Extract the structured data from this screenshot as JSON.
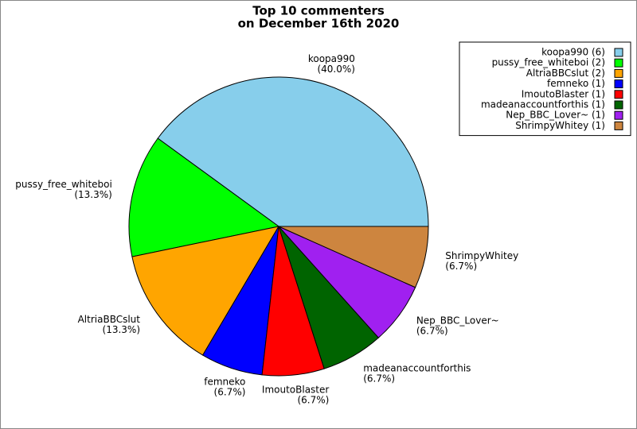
{
  "chart_data": {
    "type": "pie",
    "title": [
      "Top 10 commenters",
      "on December 16th 2020"
    ],
    "categories": [
      "koopa990",
      "pussy_free_whiteboi",
      "AltriaBBCslut",
      "femneko",
      "ImoutoBlaster",
      "madeanaccountforthis",
      "Nep_BBC_Lover~",
      "ShrimpyWhitey"
    ],
    "values": [
      40.0,
      13.3,
      13.3,
      6.7,
      6.7,
      6.7,
      6.7,
      6.7
    ],
    "value_labels": [
      "(40.0%)",
      "(13.3%)",
      "(13.3%)",
      "(6.7%)",
      "(6.7%)",
      "(6.7%)",
      "(6.7%)",
      "(6.7%)"
    ],
    "colors": [
      "#87ceeb",
      "#00ff00",
      "#ffa500",
      "#0000ff",
      "#ff0000",
      "#006400",
      "#a020f0",
      "#cd853f"
    ],
    "legend_labels": [
      "koopa990 (6)",
      "pussy_free_whiteboi (2)",
      "AltriaBBCslut (2)",
      "femneko (1)",
      "ImoutoBlaster (1)",
      "madeanaccountforthis (1)",
      "Nep_BBC_Lover~ (1)",
      "ShrimpyWhitey (1)"
    ],
    "legend": "upper right"
  }
}
